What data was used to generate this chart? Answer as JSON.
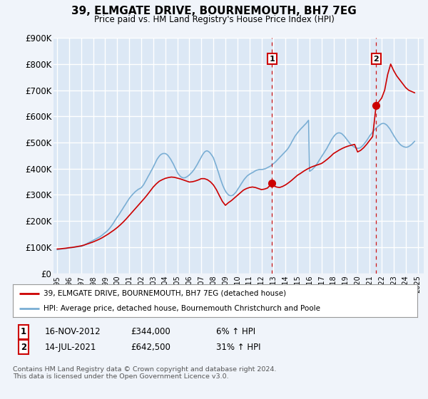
{
  "title": "39, ELMGATE DRIVE, BOURNEMOUTH, BH7 7EG",
  "subtitle": "Price paid vs. HM Land Registry's House Price Index (HPI)",
  "ylim": [
    0,
    900000
  ],
  "xlim": [
    1994.7,
    2025.5
  ],
  "yticks": [
    0,
    100000,
    200000,
    300000,
    400000,
    500000,
    600000,
    700000,
    800000,
    900000
  ],
  "ytick_labels": [
    "£0",
    "£100K",
    "£200K",
    "£300K",
    "£400K",
    "£500K",
    "£600K",
    "£700K",
    "£800K",
    "£900K"
  ],
  "background_color": "#dce8f5",
  "plot_bg_color": "#dce8f5",
  "grid_color": "#ffffff",
  "red_line_color": "#cc0000",
  "blue_line_color": "#7aaed4",
  "sale1_price": 344000,
  "sale1_year": 2012.88,
  "sale2_price": 642500,
  "sale2_year": 2021.54,
  "legend_line1": "39, ELMGATE DRIVE, BOURNEMOUTH, BH7 7EG (detached house)",
  "legend_line2": "HPI: Average price, detached house, Bournemouth Christchurch and Poole",
  "footer": "Contains HM Land Registry data © Crown copyright and database right 2024.\nThis data is licensed under the Open Government Licence v3.0.",
  "hpi_x": [
    1995.0,
    1995.08,
    1995.17,
    1995.25,
    1995.33,
    1995.42,
    1995.5,
    1995.58,
    1995.67,
    1995.75,
    1995.83,
    1995.92,
    1996.0,
    1996.08,
    1996.17,
    1996.25,
    1996.33,
    1996.42,
    1996.5,
    1996.58,
    1996.67,
    1996.75,
    1996.83,
    1996.92,
    1997.0,
    1997.08,
    1997.17,
    1997.25,
    1997.33,
    1997.42,
    1997.5,
    1997.58,
    1997.67,
    1997.75,
    1997.83,
    1997.92,
    1998.0,
    1998.08,
    1998.17,
    1998.25,
    1998.33,
    1998.42,
    1998.5,
    1998.58,
    1998.67,
    1998.75,
    1998.83,
    1998.92,
    1999.0,
    1999.08,
    1999.17,
    1999.25,
    1999.33,
    1999.42,
    1999.5,
    1999.58,
    1999.67,
    1999.75,
    1999.83,
    1999.92,
    2000.0,
    2000.08,
    2000.17,
    2000.25,
    2000.33,
    2000.42,
    2000.5,
    2000.58,
    2000.67,
    2000.75,
    2000.83,
    2000.92,
    2001.0,
    2001.08,
    2001.17,
    2001.25,
    2001.33,
    2001.42,
    2001.5,
    2001.58,
    2001.67,
    2001.75,
    2001.83,
    2001.92,
    2002.0,
    2002.08,
    2002.17,
    2002.25,
    2002.33,
    2002.42,
    2002.5,
    2002.58,
    2002.67,
    2002.75,
    2002.83,
    2002.92,
    2003.0,
    2003.08,
    2003.17,
    2003.25,
    2003.33,
    2003.42,
    2003.5,
    2003.58,
    2003.67,
    2003.75,
    2003.83,
    2003.92,
    2004.0,
    2004.08,
    2004.17,
    2004.25,
    2004.33,
    2004.42,
    2004.5,
    2004.58,
    2004.67,
    2004.75,
    2004.83,
    2004.92,
    2005.0,
    2005.08,
    2005.17,
    2005.25,
    2005.33,
    2005.42,
    2005.5,
    2005.58,
    2005.67,
    2005.75,
    2005.83,
    2005.92,
    2006.0,
    2006.08,
    2006.17,
    2006.25,
    2006.33,
    2006.42,
    2006.5,
    2006.58,
    2006.67,
    2006.75,
    2006.83,
    2006.92,
    2007.0,
    2007.08,
    2007.17,
    2007.25,
    2007.33,
    2007.42,
    2007.5,
    2007.58,
    2007.67,
    2007.75,
    2007.83,
    2007.92,
    2008.0,
    2008.08,
    2008.17,
    2008.25,
    2008.33,
    2008.42,
    2008.5,
    2008.58,
    2008.67,
    2008.75,
    2008.83,
    2008.92,
    2009.0,
    2009.08,
    2009.17,
    2009.25,
    2009.33,
    2009.42,
    2009.5,
    2009.58,
    2009.67,
    2009.75,
    2009.83,
    2009.92,
    2010.0,
    2010.08,
    2010.17,
    2010.25,
    2010.33,
    2010.42,
    2010.5,
    2010.58,
    2010.67,
    2010.75,
    2010.83,
    2010.92,
    2011.0,
    2011.08,
    2011.17,
    2011.25,
    2011.33,
    2011.42,
    2011.5,
    2011.58,
    2011.67,
    2011.75,
    2011.83,
    2011.92,
    2012.0,
    2012.08,
    2012.17,
    2012.25,
    2012.33,
    2012.42,
    2012.5,
    2012.58,
    2012.67,
    2012.75,
    2012.83,
    2012.92,
    2013.0,
    2013.08,
    2013.17,
    2013.25,
    2013.33,
    2013.42,
    2013.5,
    2013.58,
    2013.67,
    2013.75,
    2013.83,
    2013.92,
    2014.0,
    2014.08,
    2014.17,
    2014.25,
    2014.33,
    2014.42,
    2014.5,
    2014.58,
    2014.67,
    2014.75,
    2014.83,
    2014.92,
    2015.0,
    2015.08,
    2015.17,
    2015.25,
    2015.33,
    2015.42,
    2015.5,
    2015.58,
    2015.67,
    2015.75,
    2015.83,
    2015.92,
    2016.0,
    2016.08,
    2016.17,
    2016.25,
    2016.33,
    2016.42,
    2016.5,
    2016.58,
    2016.67,
    2016.75,
    2016.83,
    2016.92,
    2017.0,
    2017.08,
    2017.17,
    2017.25,
    2017.33,
    2017.42,
    2017.5,
    2017.58,
    2017.67,
    2017.75,
    2017.83,
    2017.92,
    2018.0,
    2018.08,
    2018.17,
    2018.25,
    2018.33,
    2018.42,
    2018.5,
    2018.58,
    2018.67,
    2018.75,
    2018.83,
    2018.92,
    2019.0,
    2019.08,
    2019.17,
    2019.25,
    2019.33,
    2019.42,
    2019.5,
    2019.58,
    2019.67,
    2019.75,
    2019.83,
    2019.92,
    2020.0,
    2020.08,
    2020.17,
    2020.25,
    2020.33,
    2020.42,
    2020.5,
    2020.58,
    2020.67,
    2020.75,
    2020.83,
    2020.92,
    2021.0,
    2021.08,
    2021.17,
    2021.25,
    2021.33,
    2021.42,
    2021.5,
    2021.58,
    2021.67,
    2021.75,
    2021.83,
    2021.92,
    2022.0,
    2022.08,
    2022.17,
    2022.25,
    2022.33,
    2022.42,
    2022.5,
    2022.58,
    2022.67,
    2022.75,
    2022.83,
    2022.92,
    2023.0,
    2023.08,
    2023.17,
    2023.25,
    2023.33,
    2023.42,
    2023.5,
    2023.58,
    2023.67,
    2023.75,
    2023.83,
    2023.92,
    2024.0,
    2024.08,
    2024.17,
    2024.25,
    2024.33,
    2024.42,
    2024.5,
    2024.58,
    2024.67,
    2024.75
  ],
  "hpi_y": [
    90000,
    91000,
    92000,
    92500,
    93000,
    93500,
    94000,
    94500,
    95000,
    95500,
    96000,
    96500,
    97000,
    97500,
    98000,
    98500,
    99000,
    99500,
    100000,
    100500,
    101000,
    101500,
    102000,
    102500,
    103000,
    104000,
    106000,
    108000,
    110000,
    112000,
    114000,
    116000,
    118000,
    120000,
    122000,
    124000,
    126000,
    128000,
    130000,
    132000,
    134000,
    136000,
    138000,
    140000,
    143000,
    146000,
    149000,
    152000,
    155000,
    158000,
    162000,
    166000,
    170000,
    175000,
    180000,
    185000,
    191000,
    197000,
    203000,
    209000,
    215000,
    220000,
    226000,
    232000,
    238000,
    244000,
    250000,
    256000,
    262000,
    268000,
    274000,
    280000,
    286000,
    291000,
    296000,
    300000,
    304000,
    308000,
    312000,
    315000,
    318000,
    321000,
    323000,
    325000,
    327000,
    332000,
    337000,
    343000,
    350000,
    357000,
    364000,
    371000,
    378000,
    385000,
    392000,
    399000,
    406000,
    414000,
    422000,
    430000,
    437000,
    443000,
    448000,
    452000,
    455000,
    457000,
    458000,
    458000,
    458000,
    456000,
    453000,
    449000,
    444000,
    438000,
    432000,
    425000,
    418000,
    410000,
    402000,
    394000,
    386000,
    380000,
    375000,
    371000,
    368000,
    366000,
    365000,
    365000,
    366000,
    368000,
    370000,
    373000,
    376000,
    380000,
    384000,
    388000,
    393000,
    398000,
    404000,
    410000,
    417000,
    424000,
    431000,
    438000,
    445000,
    452000,
    458000,
    463000,
    466000,
    468000,
    468000,
    466000,
    463000,
    459000,
    454000,
    448000,
    442000,
    432000,
    421000,
    410000,
    398000,
    386000,
    374000,
    362000,
    350000,
    340000,
    331000,
    322000,
    315000,
    309000,
    304000,
    300000,
    298000,
    297000,
    297000,
    298000,
    300000,
    304000,
    308000,
    313000,
    319000,
    325000,
    331000,
    337000,
    343000,
    349000,
    355000,
    360000,
    365000,
    369000,
    373000,
    376000,
    379000,
    381000,
    383000,
    385000,
    387000,
    390000,
    392000,
    394000,
    395000,
    396000,
    397000,
    397000,
    397000,
    397000,
    398000,
    399000,
    400000,
    402000,
    404000,
    406000,
    408000,
    410000,
    413000,
    416000,
    419000,
    422000,
    426000,
    430000,
    434000,
    438000,
    442000,
    446000,
    450000,
    454000,
    458000,
    462000,
    466000,
    470000,
    475000,
    480000,
    486000,
    493000,
    500000,
    507000,
    514000,
    521000,
    527000,
    532000,
    537000,
    542000,
    547000,
    551000,
    555000,
    559000,
    563000,
    567000,
    571000,
    575000,
    580000,
    585000,
    390000,
    392000,
    395000,
    398000,
    402000,
    406000,
    411000,
    416000,
    422000,
    428000,
    434000,
    440000,
    446000,
    452000,
    458000,
    464000,
    470000,
    476000,
    483000,
    490000,
    497000,
    504000,
    511000,
    517000,
    522000,
    527000,
    531000,
    534000,
    536000,
    537000,
    537000,
    536000,
    534000,
    531000,
    527000,
    523000,
    518000,
    513000,
    508000,
    503000,
    498000,
    494000,
    490000,
    487000,
    484000,
    482000,
    480000,
    479000,
    478000,
    478000,
    479000,
    481000,
    484000,
    488000,
    492000,
    497000,
    502000,
    507000,
    513000,
    519000,
    525000,
    530000,
    535000,
    540000,
    545000,
    549000,
    553000,
    557000,
    561000,
    564000,
    567000,
    570000,
    572000,
    573000,
    573000,
    572000,
    570000,
    567000,
    563000,
    558000,
    553000,
    547000,
    540000,
    534000,
    527000,
    521000,
    515000,
    509000,
    504000,
    499000,
    495000,
    491000,
    488000,
    486000,
    484000,
    483000,
    482000,
    482000,
    483000,
    485000,
    487000,
    490000,
    493000,
    497000,
    501000,
    505000
  ],
  "red_x": [
    1995.0,
    1995.25,
    1995.5,
    1995.75,
    1996.0,
    1996.25,
    1996.5,
    1996.75,
    1997.0,
    1997.25,
    1997.5,
    1997.75,
    1998.0,
    1998.25,
    1998.5,
    1998.75,
    1999.0,
    1999.25,
    1999.5,
    1999.75,
    2000.0,
    2000.25,
    2000.5,
    2000.75,
    2001.0,
    2001.25,
    2001.5,
    2001.75,
    2002.0,
    2002.25,
    2002.5,
    2002.75,
    2003.0,
    2003.25,
    2003.5,
    2003.75,
    2004.0,
    2004.25,
    2004.5,
    2004.75,
    2005.0,
    2005.25,
    2005.5,
    2005.75,
    2006.0,
    2006.25,
    2006.5,
    2006.75,
    2007.0,
    2007.25,
    2007.5,
    2007.75,
    2008.0,
    2008.25,
    2008.5,
    2008.75,
    2009.0,
    2009.25,
    2009.5,
    2009.75,
    2010.0,
    2010.25,
    2010.5,
    2010.75,
    2011.0,
    2011.25,
    2011.5,
    2011.75,
    2012.0,
    2012.25,
    2012.5,
    2012.88,
    2013.0,
    2013.25,
    2013.5,
    2013.75,
    2014.0,
    2014.25,
    2014.5,
    2014.75,
    2015.0,
    2015.25,
    2015.5,
    2015.75,
    2016.0,
    2016.25,
    2016.5,
    2016.75,
    2017.0,
    2017.25,
    2017.5,
    2017.75,
    2018.0,
    2018.25,
    2018.5,
    2018.75,
    2019.0,
    2019.25,
    2019.5,
    2019.75,
    2020.0,
    2020.25,
    2020.5,
    2020.75,
    2021.0,
    2021.25,
    2021.54,
    2021.75,
    2022.0,
    2022.25,
    2022.5,
    2022.75,
    2023.0,
    2023.25,
    2023.5,
    2023.75,
    2024.0,
    2024.25,
    2024.5,
    2024.75
  ],
  "red_y": [
    93000,
    93500,
    95000,
    96000,
    98000,
    99000,
    101000,
    103000,
    105000,
    108000,
    112000,
    116000,
    120000,
    125000,
    130000,
    136000,
    143000,
    150000,
    158000,
    166000,
    175000,
    185000,
    196000,
    208000,
    221000,
    234000,
    247000,
    260000,
    273000,
    286000,
    300000,
    315000,
    330000,
    342000,
    352000,
    358000,
    363000,
    366000,
    368000,
    367000,
    364000,
    361000,
    357000,
    353000,
    349000,
    350000,
    353000,
    357000,
    362000,
    362000,
    358000,
    350000,
    338000,
    320000,
    297000,
    275000,
    260000,
    270000,
    278000,
    288000,
    298000,
    308000,
    318000,
    324000,
    328000,
    330000,
    328000,
    324000,
    320000,
    322000,
    326000,
    344000,
    335000,
    330000,
    328000,
    332000,
    338000,
    346000,
    355000,
    365000,
    375000,
    382000,
    390000,
    397000,
    403000,
    408000,
    412000,
    416000,
    420000,
    428000,
    437000,
    447000,
    458000,
    465000,
    472000,
    478000,
    483000,
    487000,
    490000,
    493000,
    464000,
    470000,
    480000,
    493000,
    508000,
    523000,
    642500,
    655000,
    670000,
    700000,
    760000,
    800000,
    775000,
    755000,
    740000,
    725000,
    710000,
    700000,
    695000,
    690000
  ]
}
